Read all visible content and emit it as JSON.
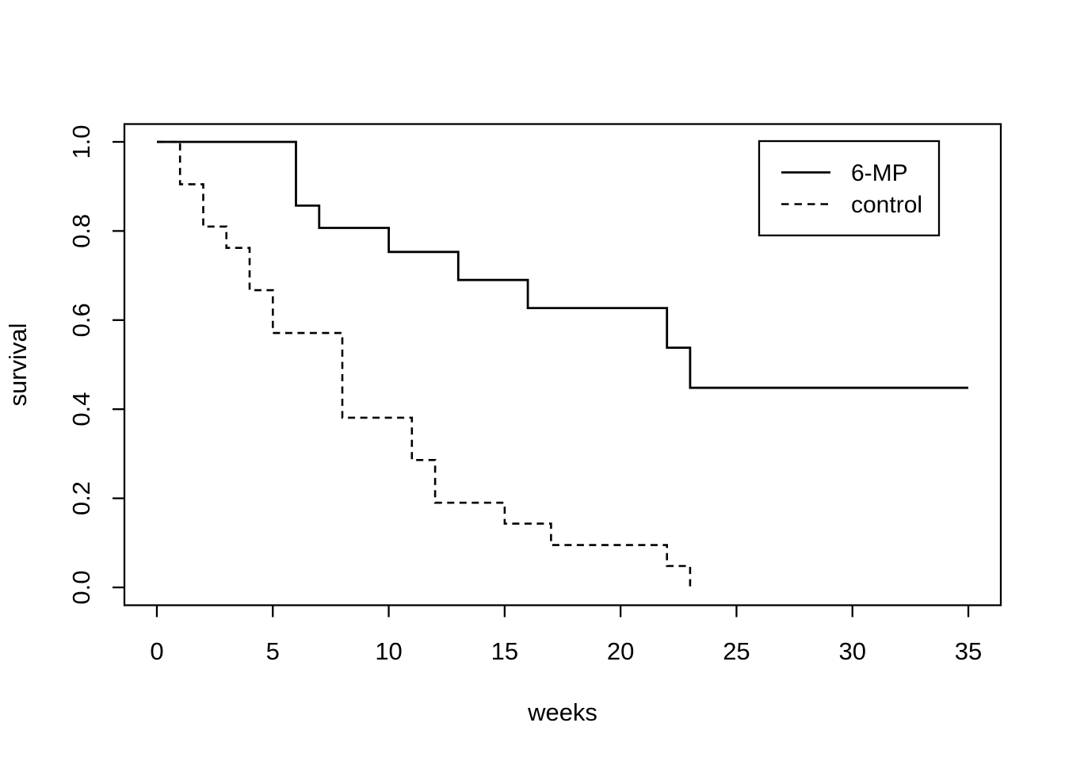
{
  "chart_data": {
    "type": "line",
    "subtype": "kaplan-meier-step",
    "title": "",
    "xlabel": "weeks",
    "ylabel": "survival",
    "x_axis": {
      "ticks": [
        0,
        5,
        10,
        15,
        20,
        25,
        30,
        35
      ],
      "tick_labels": [
        "0",
        "5",
        "10",
        "15",
        "20",
        "25",
        "30",
        "35"
      ],
      "range": [
        0,
        35
      ],
      "range_padded": [
        -1.4,
        36.4
      ]
    },
    "y_axis": {
      "ticks": [
        0.0,
        0.2,
        0.4,
        0.6,
        0.8,
        1.0
      ],
      "tick_labels": [
        "0.0",
        "0.2",
        "0.4",
        "0.6",
        "0.8",
        "1.0"
      ],
      "range": [
        0,
        1
      ],
      "range_padded": [
        -0.04,
        1.04
      ]
    },
    "grid": "off",
    "frame": "box",
    "line_color": "#000000",
    "background_color": "#ffffff",
    "series": [
      {
        "name": "6-MP",
        "style": "solid",
        "color": "#000000",
        "km_steps": [
          {
            "t": 0,
            "s": 1.0
          },
          {
            "t": 6,
            "s": 0.857
          },
          {
            "t": 7,
            "s": 0.807
          },
          {
            "t": 10,
            "s": 0.753
          },
          {
            "t": 13,
            "s": 0.69
          },
          {
            "t": 16,
            "s": 0.627
          },
          {
            "t": 22,
            "s": 0.538
          },
          {
            "t": 23,
            "s": 0.448
          }
        ],
        "end_time": 35
      },
      {
        "name": "control",
        "style": "dashed",
        "color": "#000000",
        "km_steps": [
          {
            "t": 0,
            "s": 1.0
          },
          {
            "t": 1,
            "s": 0.905
          },
          {
            "t": 2,
            "s": 0.81
          },
          {
            "t": 3,
            "s": 0.762
          },
          {
            "t": 4,
            "s": 0.667
          },
          {
            "t": 5,
            "s": 0.571
          },
          {
            "t": 8,
            "s": 0.381
          },
          {
            "t": 11,
            "s": 0.286
          },
          {
            "t": 12,
            "s": 0.19
          },
          {
            "t": 15,
            "s": 0.143
          },
          {
            "t": 17,
            "s": 0.095
          },
          {
            "t": 22,
            "s": 0.048
          },
          {
            "t": 23,
            "s": 0.0
          }
        ],
        "end_time": 23
      }
    ],
    "legend": {
      "position": "top-right",
      "entries": [
        {
          "label": "6-MP",
          "style": "solid"
        },
        {
          "label": "control",
          "style": "dashed"
        }
      ]
    }
  }
}
